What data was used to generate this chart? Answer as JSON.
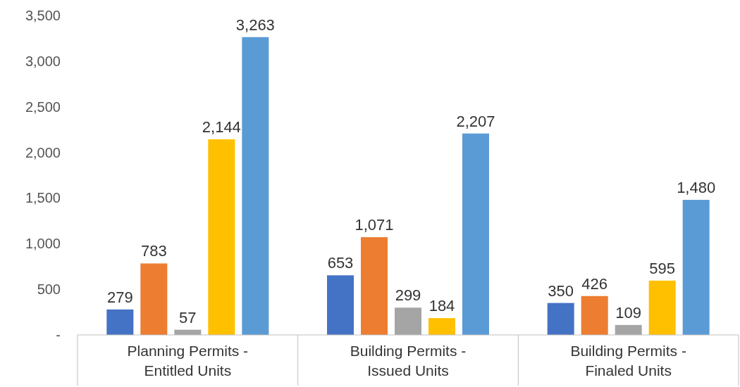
{
  "chart_data": {
    "type": "bar",
    "categories": [
      "Planning Permits - Entitled Units",
      "Building Permits - Issued Units",
      "Building Permits - Finaled Units"
    ],
    "series": [
      {
        "color": "#4472c4",
        "values": [
          279,
          653,
          350
        ],
        "value_labels": [
          "279",
          "653",
          "350"
        ]
      },
      {
        "color": "#ed7d31",
        "values": [
          783,
          1071,
          426
        ],
        "value_labels": [
          "783",
          "1,071",
          "426"
        ]
      },
      {
        "color": "#a5a5a5",
        "values": [
          57,
          299,
          109
        ],
        "value_labels": [
          "57",
          "299",
          "109"
        ]
      },
      {
        "color": "#ffc000",
        "values": [
          2144,
          184,
          595
        ],
        "value_labels": [
          "2,144",
          "184",
          "595"
        ]
      },
      {
        "color": "#5b9bd5",
        "values": [
          3263,
          2207,
          1480
        ],
        "value_labels": [
          "3,263",
          "2,207",
          "1,480"
        ]
      }
    ],
    "ylim": [
      0,
      3500
    ],
    "yticks": [
      {
        "value": 0,
        "label": "-"
      },
      500,
      {
        "value": 1000,
        "label": "1,000"
      },
      {
        "value": 1500,
        "label": "1,500"
      },
      {
        "value": 2000,
        "label": "2,000"
      },
      {
        "value": 2500,
        "label": "2,500"
      },
      {
        "value": 3000,
        "label": "3,000"
      },
      {
        "value": 3500,
        "label": "3,500"
      }
    ],
    "grid": false
  }
}
